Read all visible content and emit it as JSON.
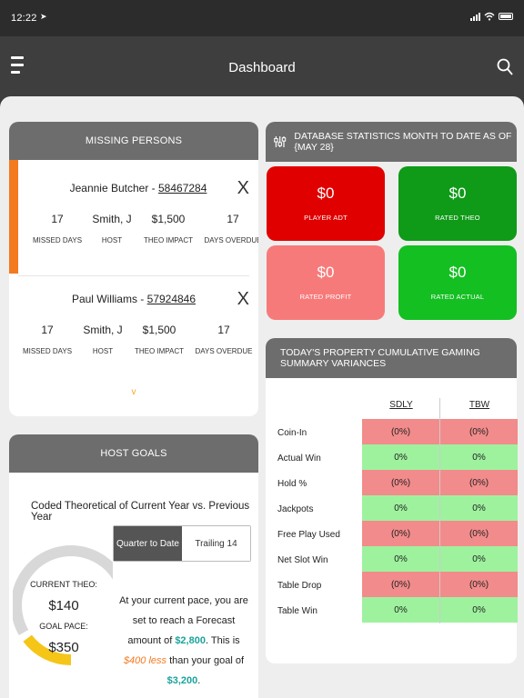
{
  "status": {
    "time": "12:22"
  },
  "nav": {
    "title": "Dashboard"
  },
  "missing": {
    "title": "MISSING PERSONS",
    "persons": [
      {
        "name": "Jeannie Butcher - ",
        "id": "58467284",
        "close": "X",
        "stats": [
          {
            "value": "17",
            "label": "MISSED DAYS"
          },
          {
            "value": "Smith, J",
            "label": "HOST"
          },
          {
            "value": "$1,500",
            "label": "THEO IMPACT"
          },
          {
            "value": "17",
            "label": "DAYS OVERDUE"
          }
        ]
      },
      {
        "name": "Paul Williams - ",
        "id": "57924846",
        "close": "X",
        "stats": [
          {
            "value": "17",
            "label": "MISSED DAYS"
          },
          {
            "value": "Smith, J",
            "label": "HOST"
          },
          {
            "value": "$1,500",
            "label": "THEO IMPACT"
          },
          {
            "value": "17",
            "label": "DAYS OVERDUE"
          }
        ]
      }
    ],
    "expand": "v"
  },
  "host_goals": {
    "title": "HOST GOALS",
    "subtitle": "Coded Theoretical of Current Year vs. Previous Year",
    "tabs": [
      "Quarter to Date",
      "Trailing 14"
    ],
    "current_theo_label": "CURRENT THEO:",
    "current_theo": "$140",
    "goal_pace_label": "GOAL PACE:",
    "goal_pace": "$350",
    "progress": 0.4,
    "pace_1": "At your current pace, you are set to reach a Forecast amount of ",
    "forecast": "$2,800",
    "pace_2": ". This is ",
    "less": "$400 less",
    "pace_3": " than your goal of ",
    "goal": "$3,200",
    "pace_4": "."
  },
  "database": {
    "title": "DATABASE STATISTICS MONTH TO DATE AS OF {MAY 28}",
    "tiles": [
      {
        "amount": "$0",
        "label": "PLAYER ADT",
        "color": "#e00000"
      },
      {
        "amount": "$0",
        "label": "RATED THEO",
        "color": "#0f9a18"
      },
      {
        "amount": "$0",
        "label": "RATED PROFIT",
        "color": "#f77a7a"
      },
      {
        "amount": "$0",
        "label": "RATED ACTUAL",
        "color": "#14bf22"
      }
    ]
  },
  "variances": {
    "title": "TODAY'S PROPERTY CUMULATIVE GAMING SUMMARY VARIANCES",
    "columns": [
      "SDLY",
      "TBW"
    ],
    "rows": [
      {
        "label": "Coin-In",
        "sdly": "(0%)",
        "tbw": "(0%)",
        "sign": "neg"
      },
      {
        "label": "Actual Win",
        "sdly": "0%",
        "tbw": "0%",
        "sign": "pos"
      },
      {
        "label": "Hold %",
        "sdly": "(0%)",
        "tbw": "(0%)",
        "sign": "neg"
      },
      {
        "label": "Jackpots",
        "sdly": "0%",
        "tbw": "0%",
        "sign": "pos"
      },
      {
        "label": "Free Play Used",
        "sdly": "(0%)",
        "tbw": "(0%)",
        "sign": "neg"
      },
      {
        "label": "Net Slot Win",
        "sdly": "0%",
        "tbw": "0%",
        "sign": "pos"
      },
      {
        "label": "Table Drop",
        "sdly": "(0%)",
        "tbw": "(0%)",
        "sign": "neg"
      },
      {
        "label": "Table Win",
        "sdly": "0%",
        "tbw": "0%",
        "sign": "pos"
      }
    ]
  }
}
